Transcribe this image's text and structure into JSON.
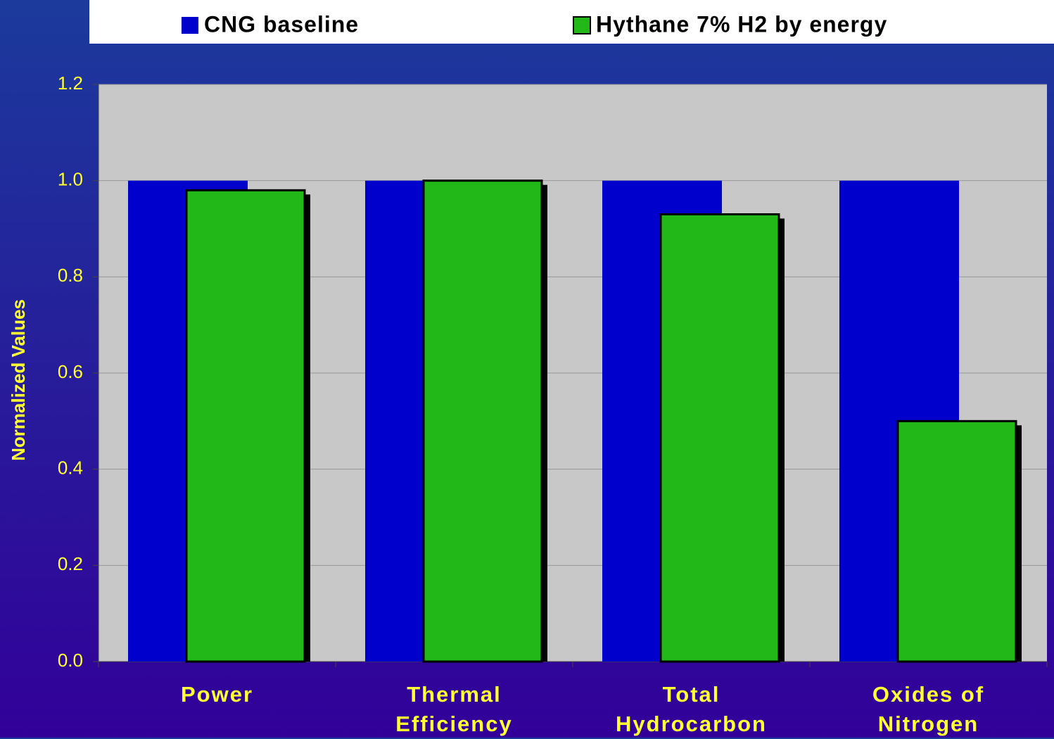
{
  "chart_data": {
    "type": "bar",
    "y_label": "Normalized Values",
    "categories": [
      "Power",
      "Thermal Efficiency",
      "Total Hydrocarbon",
      "Oxides of Nitrogen"
    ],
    "series": [
      {
        "name": "CNG baseline",
        "color": "#0000cc",
        "values": [
          1.0,
          1.0,
          1.0,
          1.0
        ]
      },
      {
        "name": "Hythane 7% H2 by energy",
        "color": "#22b818",
        "values": [
          0.98,
          1.0,
          0.93,
          0.5
        ]
      }
    ],
    "ylim": [
      0,
      1.2
    ],
    "yticks": [
      {
        "value": 0,
        "label": "0.0"
      },
      0.2,
      0.4,
      0.6,
      0.8,
      {
        "value": 1,
        "label": "1.0"
      },
      1.2
    ],
    "grid": true,
    "legend": "top"
  }
}
